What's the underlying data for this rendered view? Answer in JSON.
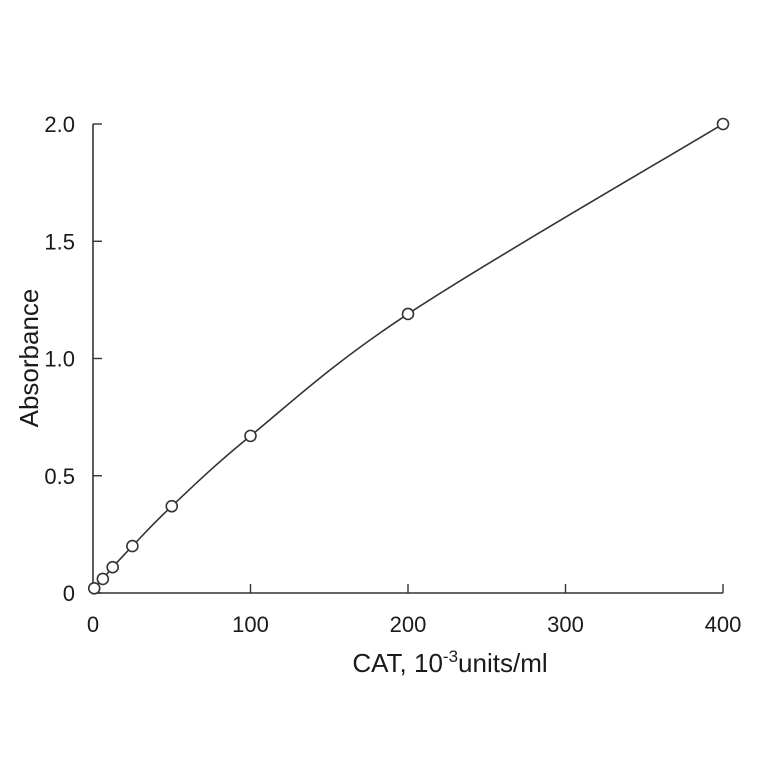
{
  "chart_data": {
    "type": "line",
    "title": "",
    "xlabel": {
      "main": "CAT, 10",
      "superscript": "-3",
      "suffix": "units/ml"
    },
    "ylabel": "Absorbance",
    "xlim": [
      0,
      400
    ],
    "ylim": [
      0,
      2.0
    ],
    "x_ticks": [
      0,
      100,
      200,
      300,
      400
    ],
    "x_tick_labels": [
      "0",
      "100",
      "200",
      "300",
      "400"
    ],
    "y_ticks": [
      0,
      0.5,
      1.0,
      1.5,
      2.0
    ],
    "y_tick_labels": [
      "0",
      "0.5",
      "1.0",
      "1.5",
      "2.0"
    ],
    "grid": false,
    "legend": "none",
    "series": [
      {
        "x": [
          0.78,
          6.25,
          12.5,
          25,
          50,
          100,
          200,
          400
        ],
        "y": [
          0.02,
          0.06,
          0.11,
          0.2,
          0.37,
          0.67,
          1.19,
          2.0
        ],
        "marker": "open-circle",
        "line": "smooth",
        "color": "#333333"
      }
    ]
  }
}
